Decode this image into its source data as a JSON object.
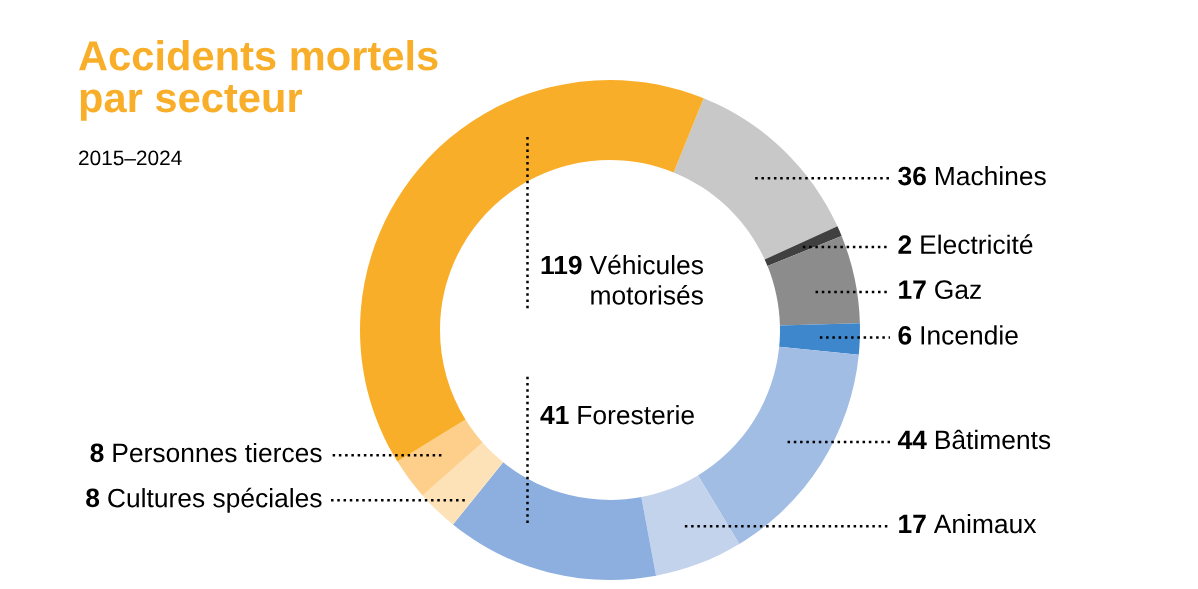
{
  "chart_data": {
    "type": "donut",
    "title": "Accidents mortels\npar secteur",
    "subtitle": "2015–2024",
    "categories": [
      "Machines",
      "Electricité",
      "Gaz",
      "Incendie",
      "Bâtiments",
      "Animaux",
      "Foresterie",
      "Cultures spéciales",
      "Personnes tierces",
      "Véhicules\nmotorisés"
    ],
    "values": [
      36,
      2,
      17,
      6,
      44,
      17,
      41,
      8,
      8,
      119
    ],
    "colors": [
      "#c8c8c8",
      "#404040",
      "#8c8c8c",
      "#3f87cc",
      "#a2bde3",
      "#c3d3ec",
      "#8cafe0",
      "#fde2b8",
      "#fdcf8a",
      "#f9ae29"
    ],
    "data_labels": true
  }
}
